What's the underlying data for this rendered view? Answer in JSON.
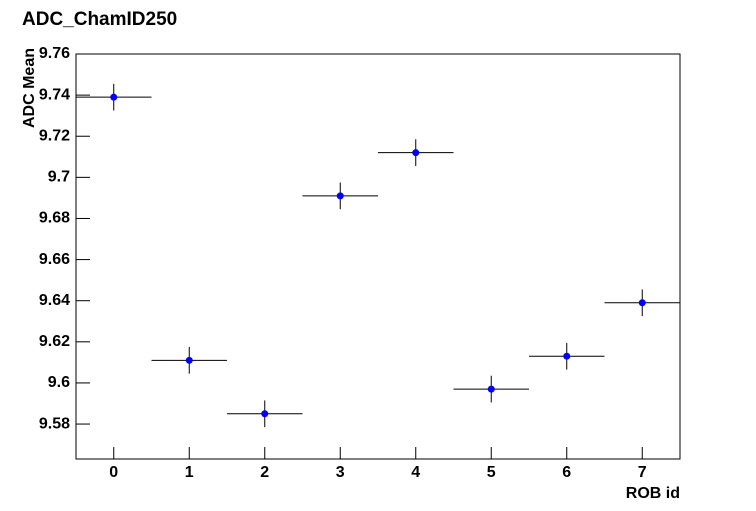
{
  "chart_data": {
    "type": "scatter",
    "title": "ADC_ChamID250",
    "xlabel": "ROB id",
    "ylabel": "ADC Mean",
    "series": [
      {
        "name": "ADC_ChamID250",
        "color": "#0000ff",
        "x": [
          0,
          1,
          2,
          3,
          4,
          5,
          6,
          7
        ],
        "values": [
          9.739,
          9.611,
          9.585,
          9.691,
          9.712,
          9.597,
          9.613,
          9.639
        ],
        "xerr": [
          0.5,
          0.5,
          0.5,
          0.5,
          0.5,
          0.5,
          0.5,
          0.5
        ],
        "yerr": [
          0.0065,
          0.0065,
          0.0065,
          0.0065,
          0.0065,
          0.0065,
          0.0065,
          0.0065
        ]
      }
    ],
    "xlim": [
      -0.5,
      7.5
    ],
    "xticks": [
      0,
      1,
      2,
      3,
      4,
      5,
      6,
      7
    ],
    "ylim": [
      9.563,
      9.76
    ],
    "yticks": [
      9.58,
      9.6,
      9.62,
      9.64,
      9.66,
      9.68,
      9.7,
      9.72,
      9.74,
      9.76
    ]
  }
}
